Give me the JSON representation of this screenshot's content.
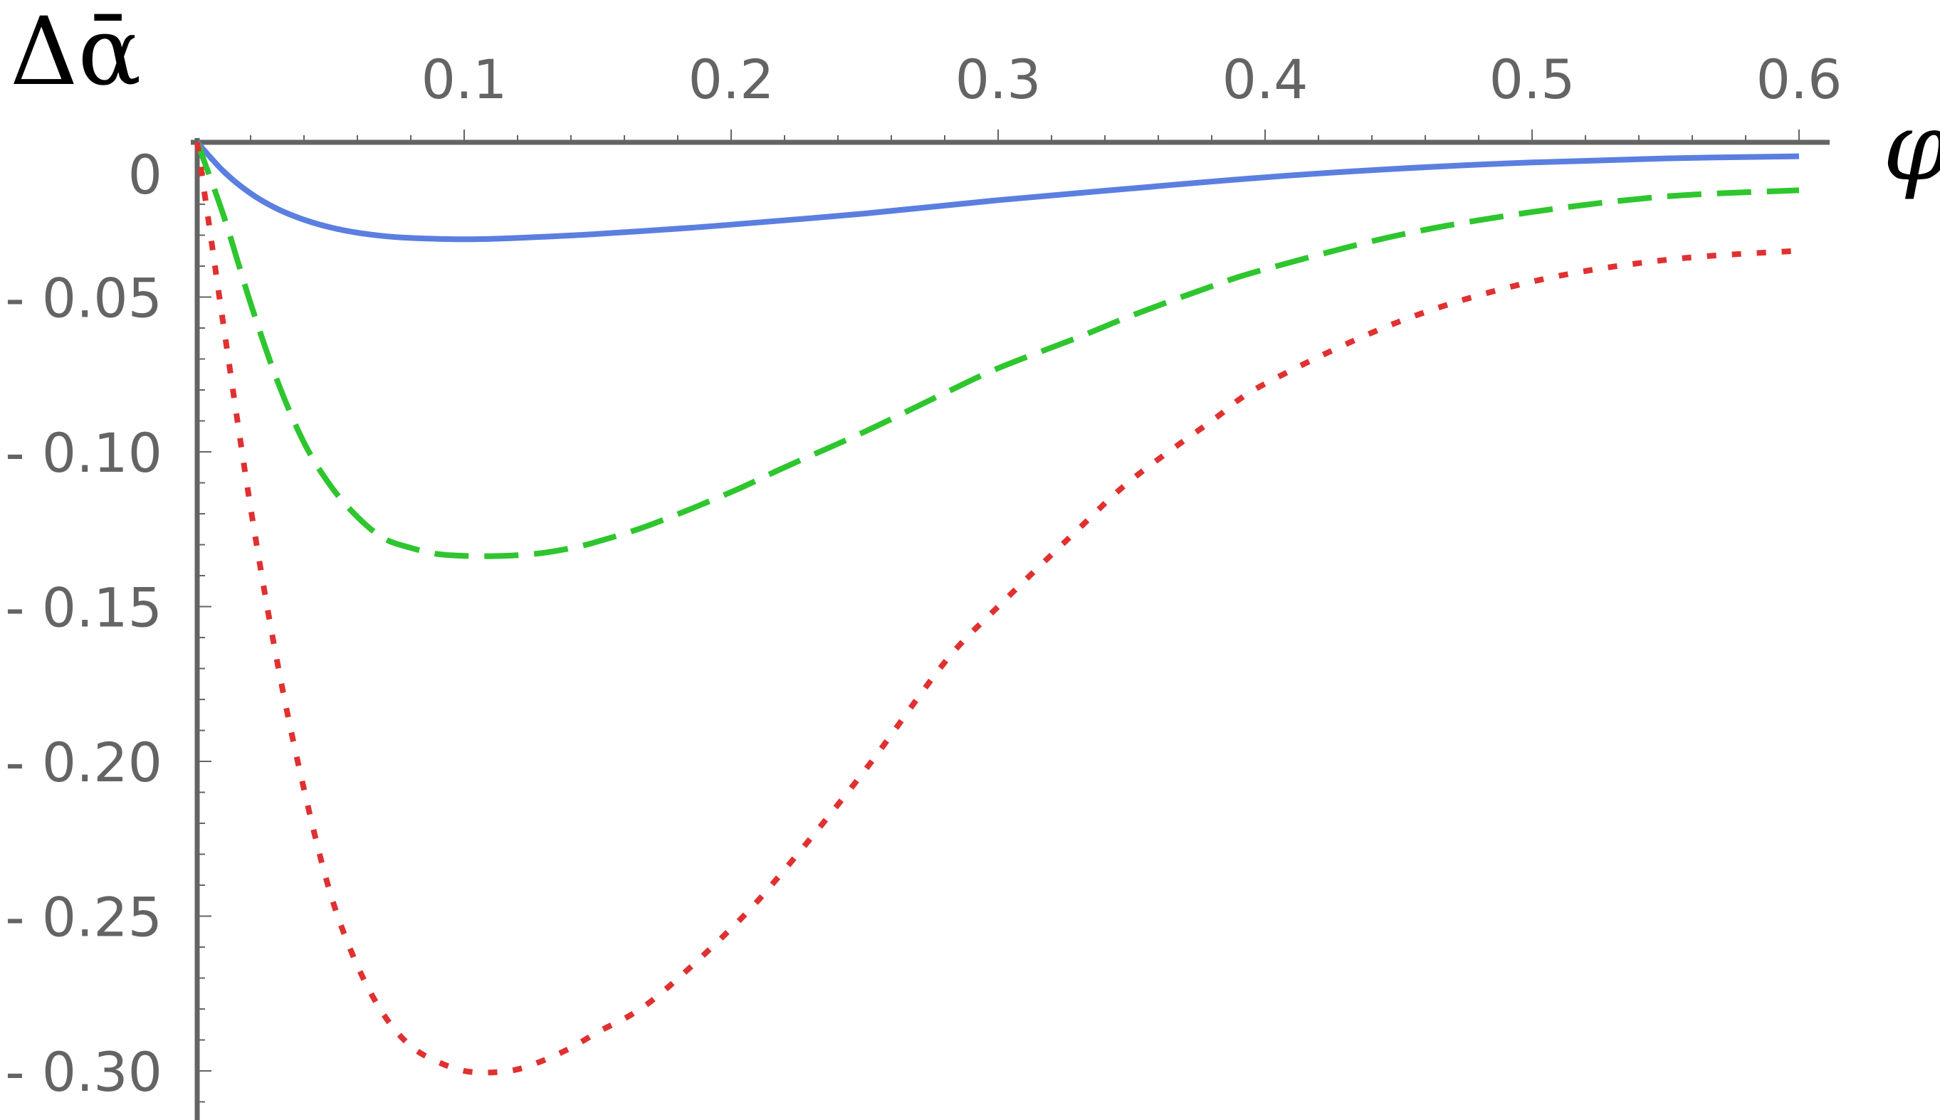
{
  "chart_data": {
    "type": "line",
    "title": "",
    "xlabel": "φ",
    "ylabel": "Δᾱ",
    "xlim": [
      0,
      0.6
    ],
    "ylim": [
      -0.31,
      0.01
    ],
    "x_ticks": [
      {
        "value": 0.1,
        "label": "0.1"
      },
      {
        "value": 0.2,
        "label": "0.2"
      },
      {
        "value": 0.3,
        "label": "0.3"
      },
      {
        "value": 0.4,
        "label": "0.4"
      },
      {
        "value": 0.5,
        "label": "0.5"
      },
      {
        "value": 0.6,
        "label": "0.6"
      }
    ],
    "y_ticks": [
      {
        "value": 0,
        "label": "0"
      },
      {
        "value": -0.05,
        "label": "- 0.05"
      },
      {
        "value": -0.1,
        "label": "- 0.10"
      },
      {
        "value": -0.15,
        "label": "- 0.15"
      },
      {
        "value": -0.2,
        "label": "- 0.20"
      },
      {
        "value": -0.25,
        "label": "- 0.25"
      },
      {
        "value": -0.3,
        "label": "- 0.30"
      }
    ],
    "grid": false,
    "series": [
      {
        "name": "solid",
        "color": "#5b7fe0",
        "dash": "solid",
        "x": [
          0,
          0.01,
          0.02,
          0.03,
          0.04,
          0.05,
          0.06,
          0.07,
          0.08,
          0.09,
          0.1,
          0.11,
          0.12,
          0.13,
          0.14,
          0.15,
          0.18,
          0.2,
          0.25,
          0.3,
          0.35,
          0.4,
          0.45,
          0.5,
          0.55,
          0.6
        ],
        "y": [
          0,
          -0.0095,
          -0.0165,
          -0.0215,
          -0.025,
          -0.0275,
          -0.0292,
          -0.0303,
          -0.0309,
          -0.0312,
          -0.0313,
          -0.0312,
          -0.0309,
          -0.0305,
          -0.0301,
          -0.0296,
          -0.0279,
          -0.0266,
          -0.023,
          -0.0187,
          -0.0149,
          -0.0113,
          -0.0085,
          -0.0065,
          -0.0052,
          -0.0045
        ]
      },
      {
        "name": "dashed",
        "color": "#2ec62e",
        "dash": "dashed",
        "x": [
          0,
          0.01,
          0.02,
          0.03,
          0.04,
          0.05,
          0.06,
          0.07,
          0.08,
          0.09,
          0.1,
          0.11,
          0.12,
          0.13,
          0.14,
          0.15,
          0.17,
          0.2,
          0.22,
          0.25,
          0.28,
          0.3,
          0.33,
          0.35,
          0.38,
          0.4,
          0.45,
          0.5,
          0.55,
          0.6
        ],
        "y": [
          0,
          -0.024,
          -0.052,
          -0.077,
          -0.097,
          -0.111,
          -0.121,
          -0.128,
          -0.131,
          -0.133,
          -0.1336,
          -0.1337,
          -0.1334,
          -0.1326,
          -0.1311,
          -0.129,
          -0.1235,
          -0.113,
          -0.105,
          -0.0935,
          -0.081,
          -0.073,
          -0.063,
          -0.056,
          -0.0465,
          -0.041,
          -0.03,
          -0.0225,
          -0.0175,
          -0.0155
        ]
      },
      {
        "name": "dotted",
        "color": "#e03030",
        "dash": "dotted",
        "x": [
          0,
          0.005,
          0.01,
          0.02,
          0.03,
          0.04,
          0.05,
          0.06,
          0.07,
          0.08,
          0.09,
          0.1,
          0.11,
          0.12,
          0.13,
          0.14,
          0.15,
          0.17,
          0.2,
          0.22,
          0.25,
          0.28,
          0.3,
          0.33,
          0.35,
          0.38,
          0.4,
          0.45,
          0.5,
          0.55,
          0.6
        ],
        "y": [
          0,
          -0.03,
          -0.06,
          -0.118,
          -0.168,
          -0.209,
          -0.243,
          -0.266,
          -0.282,
          -0.292,
          -0.297,
          -0.3,
          -0.3005,
          -0.2995,
          -0.2965,
          -0.2925,
          -0.2875,
          -0.2775,
          -0.254,
          -0.235,
          -0.203,
          -0.168,
          -0.15,
          -0.125,
          -0.109,
          -0.09,
          -0.078,
          -0.058,
          -0.045,
          -0.038,
          -0.035
        ]
      }
    ]
  }
}
